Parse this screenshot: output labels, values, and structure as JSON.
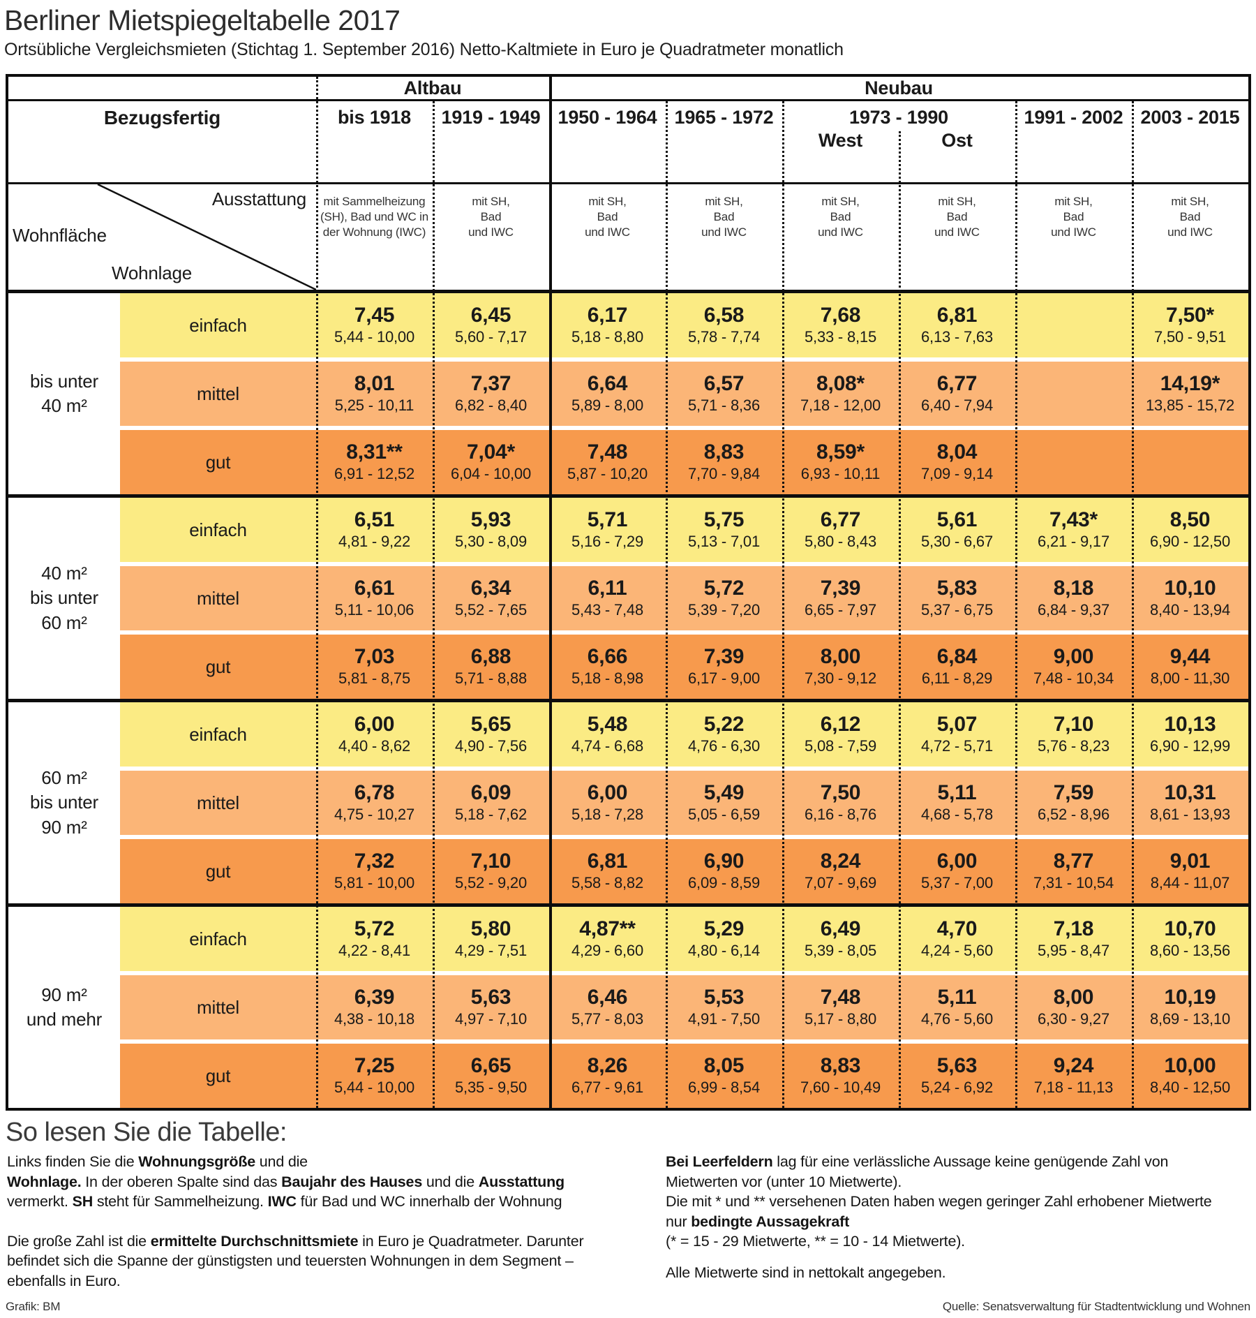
{
  "title": "Berliner Mietspiegeltabelle 2017",
  "subtitle": "Ortsübliche Vergleichsmieten (Stichtag 1. September 2016) Netto-Kaltmiete in Euro je Quadratmeter monatlich",
  "colors": {
    "einfach": "#FBEB84",
    "mittel": "#FBB577",
    "gut": "#F79A4D",
    "border": "#0d0d0d"
  },
  "header": {
    "era_groups": [
      {
        "label": "Altbau"
      },
      {
        "label": "Neubau"
      }
    ],
    "bezugsfertig_label": "Bezugsfertig",
    "years": [
      "bis 1918",
      "1919 - 1949",
      "1950 - 1964",
      "1965 - 1972",
      "1973 - 1990",
      "1991 - 2002",
      "2003 - 2015"
    ],
    "west_label": "West",
    "ost_label": "Ost",
    "ausstattung_label": "Ausstattung",
    "wohnflaeche_label": "Wohnfläche",
    "wohnlage_label": "Wohnlage",
    "equipment": [
      [
        "mit Sammelheizung",
        "(SH), Bad und WC in",
        "der Wohnung (IWC)"
      ],
      [
        "mit SH,",
        "Bad",
        "und IWC"
      ],
      [
        "mit SH,",
        "Bad",
        "und IWC"
      ],
      [
        "mit SH,",
        "Bad",
        "und IWC"
      ],
      [
        "mit SH,",
        "Bad",
        "und IWC"
      ],
      [
        "mit SH,",
        "Bad",
        "und IWC"
      ],
      [
        "mit SH,",
        "Bad",
        "und IWC"
      ],
      [
        "mit SH,",
        "Bad",
        "und IWC"
      ]
    ]
  },
  "chart_data": {
    "type": "table",
    "title": "Berliner Mietspiegeltabelle 2017",
    "unit": "Netto-Kaltmiete in Euro je Quadratmeter monatlich",
    "columns": [
      "bis 1918",
      "1919 - 1949",
      "1950 - 1964",
      "1965 - 1972",
      "1973 - 1990 West",
      "1973 - 1990 Ost",
      "1991 - 2002",
      "2003 - 2015"
    ],
    "row_groups": [
      {
        "wohnflaeche": "bis unter 40 m²",
        "wohnflaeche_lines": [
          "bis unter",
          "40 m²"
        ],
        "rows": [
          {
            "wohnlage": "einfach",
            "cells": [
              {
                "avg": "7,45",
                "range": "5,44 - 10,00"
              },
              {
                "avg": "6,45",
                "range": "5,60 - 7,17"
              },
              {
                "avg": "6,17",
                "range": "5,18 - 8,80"
              },
              {
                "avg": "6,58",
                "range": "5,78 - 7,74"
              },
              {
                "avg": "7,68",
                "range": "5,33 - 8,15"
              },
              {
                "avg": "6,81",
                "range": "6,13 - 7,63"
              },
              null,
              {
                "avg": "7,50*",
                "range": "7,50 - 9,51"
              }
            ]
          },
          {
            "wohnlage": "mittel",
            "cells": [
              {
                "avg": "8,01",
                "range": "5,25 - 10,11"
              },
              {
                "avg": "7,37",
                "range": "6,82 - 8,40"
              },
              {
                "avg": "6,64",
                "range": "5,89 - 8,00"
              },
              {
                "avg": "6,57",
                "range": "5,71 - 8,36"
              },
              {
                "avg": "8,08*",
                "range": "7,18 - 12,00"
              },
              {
                "avg": "6,77",
                "range": "6,40 - 7,94"
              },
              null,
              {
                "avg": "14,19*",
                "range": "13,85 - 15,72"
              }
            ]
          },
          {
            "wohnlage": "gut",
            "cells": [
              {
                "avg": "8,31**",
                "range": "6,91 - 12,52"
              },
              {
                "avg": "7,04*",
                "range": "6,04 - 10,00"
              },
              {
                "avg": "7,48",
                "range": "5,87 - 10,20"
              },
              {
                "avg": "8,83",
                "range": "7,70 - 9,84"
              },
              {
                "avg": "8,59*",
                "range": "6,93 - 10,11"
              },
              {
                "avg": "8,04",
                "range": "7,09 - 9,14"
              },
              null,
              null
            ]
          }
        ]
      },
      {
        "wohnflaeche": "40 m² bis unter 60 m²",
        "wohnflaeche_lines": [
          "40 m²",
          "bis unter",
          "60 m²"
        ],
        "rows": [
          {
            "wohnlage": "einfach",
            "cells": [
              {
                "avg": "6,51",
                "range": "4,81 - 9,22"
              },
              {
                "avg": "5,93",
                "range": "5,30 - 8,09"
              },
              {
                "avg": "5,71",
                "range": "5,16 - 7,29"
              },
              {
                "avg": "5,75",
                "range": "5,13 - 7,01"
              },
              {
                "avg": "6,77",
                "range": "5,80 - 8,43"
              },
              {
                "avg": "5,61",
                "range": "5,30 - 6,67"
              },
              {
                "avg": "7,43*",
                "range": "6,21 - 9,17"
              },
              {
                "avg": "8,50",
                "range": "6,90 - 12,50"
              }
            ]
          },
          {
            "wohnlage": "mittel",
            "cells": [
              {
                "avg": "6,61",
                "range": "5,11 - 10,06"
              },
              {
                "avg": "6,34",
                "range": "5,52 - 7,65"
              },
              {
                "avg": "6,11",
                "range": "5,43 - 7,48"
              },
              {
                "avg": "5,72",
                "range": "5,39 - 7,20"
              },
              {
                "avg": "7,39",
                "range": "6,65 - 7,97"
              },
              {
                "avg": "5,83",
                "range": "5,37 - 6,75"
              },
              {
                "avg": "8,18",
                "range": "6,84 - 9,37"
              },
              {
                "avg": "10,10",
                "range": "8,40 - 13,94"
              }
            ]
          },
          {
            "wohnlage": "gut",
            "cells": [
              {
                "avg": "7,03",
                "range": "5,81 - 8,75"
              },
              {
                "avg": "6,88",
                "range": "5,71 - 8,88"
              },
              {
                "avg": "6,66",
                "range": "5,18 - 8,98"
              },
              {
                "avg": "7,39",
                "range": "6,17 - 9,00"
              },
              {
                "avg": "8,00",
                "range": "7,30 - 9,12"
              },
              {
                "avg": "6,84",
                "range": "6,11 - 8,29"
              },
              {
                "avg": "9,00",
                "range": "7,48 - 10,34"
              },
              {
                "avg": "9,44",
                "range": "8,00 - 11,30"
              }
            ]
          }
        ]
      },
      {
        "wohnflaeche": "60 m² bis unter 90 m²",
        "wohnflaeche_lines": [
          "60 m²",
          "bis unter",
          "90 m²"
        ],
        "rows": [
          {
            "wohnlage": "einfach",
            "cells": [
              {
                "avg": "6,00",
                "range": "4,40 - 8,62"
              },
              {
                "avg": "5,65",
                "range": "4,90 - 7,56"
              },
              {
                "avg": "5,48",
                "range": "4,74 - 6,68"
              },
              {
                "avg": "5,22",
                "range": "4,76 - 6,30"
              },
              {
                "avg": "6,12",
                "range": "5,08 - 7,59"
              },
              {
                "avg": "5,07",
                "range": "4,72 - 5,71"
              },
              {
                "avg": "7,10",
                "range": "5,76 - 8,23"
              },
              {
                "avg": "10,13",
                "range": "6,90 - 12,99"
              }
            ]
          },
          {
            "wohnlage": "mittel",
            "cells": [
              {
                "avg": "6,78",
                "range": "4,75 - 10,27"
              },
              {
                "avg": "6,09",
                "range": "5,18 - 7,62"
              },
              {
                "avg": "6,00",
                "range": "5,18 - 7,28"
              },
              {
                "avg": "5,49",
                "range": "5,05 - 6,59"
              },
              {
                "avg": "7,50",
                "range": "6,16 - 8,76"
              },
              {
                "avg": "5,11",
                "range": "4,68 - 5,78"
              },
              {
                "avg": "7,59",
                "range": "6,52 - 8,96"
              },
              {
                "avg": "10,31",
                "range": "8,61 - 13,93"
              }
            ]
          },
          {
            "wohnlage": "gut",
            "cells": [
              {
                "avg": "7,32",
                "range": "5,81 - 10,00"
              },
              {
                "avg": "7,10",
                "range": "5,52 - 9,20"
              },
              {
                "avg": "6,81",
                "range": "5,58 - 8,82"
              },
              {
                "avg": "6,90",
                "range": "6,09 - 8,59"
              },
              {
                "avg": "8,24",
                "range": "7,07 - 9,69"
              },
              {
                "avg": "6,00",
                "range": "5,37 - 7,00"
              },
              {
                "avg": "8,77",
                "range": "7,31 - 10,54"
              },
              {
                "avg": "9,01",
                "range": "8,44 - 11,07"
              }
            ]
          }
        ]
      },
      {
        "wohnflaeche": "90 m² und mehr",
        "wohnflaeche_lines": [
          "90 m²",
          "und mehr"
        ],
        "rows": [
          {
            "wohnlage": "einfach",
            "cells": [
              {
                "avg": "5,72",
                "range": "4,22 - 8,41"
              },
              {
                "avg": "5,80",
                "range": "4,29 - 7,51"
              },
              {
                "avg": "4,87**",
                "range": "4,29 - 6,60"
              },
              {
                "avg": "5,29",
                "range": "4,80 - 6,14"
              },
              {
                "avg": "6,49",
                "range": "5,39 - 8,05"
              },
              {
                "avg": "4,70",
                "range": "4,24 - 5,60"
              },
              {
                "avg": "7,18",
                "range": "5,95 - 8,47"
              },
              {
                "avg": "10,70",
                "range": "8,60 - 13,56"
              }
            ]
          },
          {
            "wohnlage": "mittel",
            "cells": [
              {
                "avg": "6,39",
                "range": "4,38 - 10,18"
              },
              {
                "avg": "5,63",
                "range": "4,97 - 7,10"
              },
              {
                "avg": "6,46",
                "range": "5,77 - 8,03"
              },
              {
                "avg": "5,53",
                "range": "4,91 - 7,50"
              },
              {
                "avg": "7,48",
                "range": "5,17 - 8,80"
              },
              {
                "avg": "5,11",
                "range": "4,76 - 5,60"
              },
              {
                "avg": "8,00",
                "range": "6,30 - 9,27"
              },
              {
                "avg": "10,19",
                "range": "8,69 - 13,10"
              }
            ]
          },
          {
            "wohnlage": "gut",
            "cells": [
              {
                "avg": "7,25",
                "range": "5,44 - 10,00"
              },
              {
                "avg": "6,65",
                "range": "5,35 - 9,50"
              },
              {
                "avg": "8,26",
                "range": "6,77 - 9,61"
              },
              {
                "avg": "8,05",
                "range": "6,99 - 8,54"
              },
              {
                "avg": "8,83",
                "range": "7,60 - 10,49"
              },
              {
                "avg": "5,63",
                "range": "5,24 - 6,92"
              },
              {
                "avg": "9,24",
                "range": "7,18 - 11,13"
              },
              {
                "avg": "10,00",
                "range": "8,40 - 12,50"
              }
            ]
          }
        ]
      }
    ]
  },
  "footer": {
    "reading_title": "So lesen Sie die Tabelle:",
    "left_paragraphs": [
      [
        {
          "t": "Links finden Sie die "
        },
        {
          "t": "Wohnungsgröße",
          "b": true
        },
        {
          "t": " und die"
        },
        {
          "br": true
        },
        {
          "t": "Wohnlage.",
          "b": true
        },
        {
          "t": " In der oberen Spalte sind das "
        },
        {
          "t": "Baujahr des Hauses",
          "b": true
        },
        {
          "t": " und die "
        },
        {
          "t": "Ausstattung",
          "b": true
        },
        {
          "br": true
        },
        {
          "t": "vermerkt. "
        },
        {
          "t": "SH",
          "b": true
        },
        {
          "t": " steht für Sammelheizung. "
        },
        {
          "t": "IWC",
          "b": true
        },
        {
          "t": " für Bad und WC innerhalb der Wohnung"
        }
      ],
      [
        {
          "t": "Die große Zahl ist die "
        },
        {
          "t": "ermittelte Durchschnittsmiete",
          "b": true
        },
        {
          "t": " in Euro je Quadratmeter.  Darunter"
        },
        {
          "br": true
        },
        {
          "t": "befindet sich die Spanne der günstigsten und teuersten Wohnungen in dem Segment –"
        },
        {
          "br": true
        },
        {
          "t": "ebenfalls in Euro."
        }
      ]
    ],
    "right_paragraphs": [
      [
        {
          "t": "Bei Leerfeldern",
          "b": true
        },
        {
          "t": " lag für eine verlässliche Aussage keine genügende Zahl von"
        },
        {
          "br": true
        },
        {
          "t": "Mietwerten vor (unter 10 Mietwerte)."
        },
        {
          "br": true
        },
        {
          "t": "Die mit * und ** versehenen Daten haben wegen geringer Zahl erhobener Mietwerte"
        },
        {
          "br": true
        },
        {
          "t": "nur "
        },
        {
          "t": "bedingte Aussagekraft",
          "b": true
        },
        {
          "br": true
        },
        {
          "t": "(* = 15 - 29 Mietwerte, ** = 10 - 14 Mietwerte)."
        }
      ],
      [
        {
          "t": "Alle Mietwerte sind in nettokalt angegeben."
        }
      ]
    ],
    "credit_left": "Grafik: BM",
    "credit_right": "Quelle: Senatsverwaltung für Stadtentwicklung und Wohnen"
  }
}
